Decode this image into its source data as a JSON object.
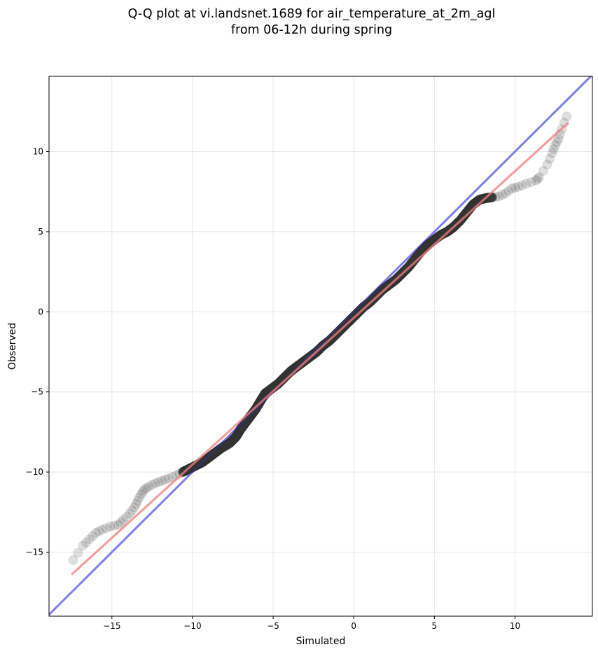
{
  "title": {
    "line1": "Q-Q plot at vi.landsnet.1689 for air_temperature_at_2m_agl",
    "line2": "from 06-12h during spring"
  },
  "chart_data": {
    "type": "scatter",
    "title": "Q-Q plot at vi.landsnet.1689 for air_temperature_at_2m_agl from 06-12h during spring",
    "xlabel": "Simulated",
    "ylabel": "Observed",
    "xlim": [
      -18.9,
      14.8
    ],
    "ylim": [
      -19.0,
      14.7
    ],
    "xticks": [
      -15,
      -10,
      -5,
      0,
      5,
      10
    ],
    "yticks": [
      -15,
      -10,
      -5,
      0,
      5,
      10
    ],
    "xtick_labels": [
      "−15",
      "−10",
      "−5",
      "0",
      "5",
      "10"
    ],
    "ytick_labels": [
      "−15",
      "−10",
      "−5",
      "0",
      "5",
      "10"
    ],
    "grid": true,
    "series": [
      {
        "role": "quantiles",
        "color": "#555555",
        "points": [
          [
            -17.4,
            -15.5
          ],
          [
            -16.8,
            -14.6
          ],
          [
            -16.4,
            -14.2
          ],
          [
            -16.0,
            -13.8
          ],
          [
            -15.6,
            -13.6
          ],
          [
            -15.1,
            -13.4
          ],
          [
            -14.6,
            -13.3
          ],
          [
            -14.3,
            -13.0
          ],
          [
            -13.9,
            -12.6
          ],
          [
            -13.6,
            -12.2
          ],
          [
            -13.4,
            -11.8
          ],
          [
            -13.2,
            -11.4
          ],
          [
            -13.0,
            -11.1
          ],
          [
            -12.7,
            -10.9
          ],
          [
            -12.3,
            -10.7
          ],
          [
            -11.9,
            -10.55
          ],
          [
            -11.5,
            -10.4
          ],
          [
            -11.0,
            -10.2
          ],
          [
            -10.6,
            -10.0
          ],
          [
            -10.2,
            -9.8
          ],
          [
            -9.8,
            -9.6
          ],
          [
            -9.4,
            -9.4
          ],
          [
            -9.0,
            -9.1
          ],
          [
            -8.6,
            -8.8
          ],
          [
            -8.2,
            -8.5
          ],
          [
            -7.7,
            -8.2
          ],
          [
            -7.3,
            -7.8
          ],
          [
            -7.0,
            -7.3
          ],
          [
            -6.7,
            -6.9
          ],
          [
            -6.4,
            -6.5
          ],
          [
            -6.1,
            -6.1
          ],
          [
            -5.8,
            -5.6
          ],
          [
            -5.5,
            -5.1
          ],
          [
            -5.1,
            -4.8
          ],
          [
            -4.7,
            -4.5
          ],
          [
            -4.3,
            -4.1
          ],
          [
            -3.9,
            -3.7
          ],
          [
            -3.5,
            -3.4
          ],
          [
            -3.1,
            -3.1
          ],
          [
            -2.7,
            -2.8
          ],
          [
            -2.3,
            -2.5
          ],
          [
            -1.9,
            -2.1
          ],
          [
            -1.5,
            -1.8
          ],
          [
            -1.1,
            -1.4
          ],
          [
            -0.7,
            -1.0
          ],
          [
            -0.3,
            -0.6
          ],
          [
            0.0,
            -0.3
          ],
          [
            0.3,
            0.0
          ],
          [
            0.6,
            0.3
          ],
          [
            1.0,
            0.6
          ],
          [
            1.4,
            1.0
          ],
          [
            1.8,
            1.4
          ],
          [
            2.2,
            1.7
          ],
          [
            2.6,
            2.0
          ],
          [
            3.0,
            2.4
          ],
          [
            3.4,
            2.8
          ],
          [
            3.8,
            3.3
          ],
          [
            4.2,
            3.8
          ],
          [
            4.6,
            4.2
          ],
          [
            5.0,
            4.5
          ],
          [
            5.4,
            4.8
          ],
          [
            5.8,
            5.0
          ],
          [
            6.2,
            5.3
          ],
          [
            6.6,
            5.7
          ],
          [
            7.0,
            6.2
          ],
          [
            7.4,
            6.7
          ],
          [
            7.8,
            7.0
          ],
          [
            8.2,
            7.1
          ],
          [
            8.6,
            7.15
          ],
          [
            9.0,
            7.2
          ],
          [
            9.4,
            7.4
          ],
          [
            9.8,
            7.7
          ],
          [
            10.2,
            7.8
          ],
          [
            10.7,
            8.0
          ],
          [
            11.3,
            8.2
          ],
          [
            11.5,
            8.4
          ],
          [
            12.0,
            9.2
          ],
          [
            12.3,
            9.9
          ],
          [
            12.5,
            10.4
          ],
          [
            12.7,
            10.8
          ],
          [
            12.9,
            11.4
          ],
          [
            13.2,
            12.2
          ]
        ]
      },
      {
        "role": "fit-line",
        "color": "#f08080",
        "points": [
          [
            -17.5,
            -16.4
          ],
          [
            13.3,
            11.8
          ]
        ]
      },
      {
        "role": "one-to-one-line",
        "color": "#8888ee",
        "points": [
          [
            -18.9,
            -18.9
          ],
          [
            14.8,
            14.8
          ]
        ]
      }
    ]
  }
}
